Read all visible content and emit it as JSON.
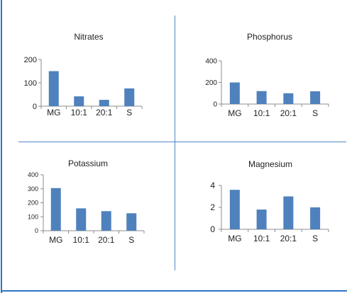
{
  "colors": {
    "bar": "#4f81bd",
    "axis": "#8c8c8c",
    "frame": "#2e74c4"
  },
  "chart_data": [
    {
      "type": "bar",
      "title": "Nitrates",
      "categories": [
        "MG",
        "10:1",
        "20:1",
        "S"
      ],
      "values": [
        150,
        42,
        27,
        76
      ],
      "ylim": [
        0,
        200
      ],
      "yticks": [
        "0",
        "100",
        "200"
      ],
      "grid": false,
      "legend": "none"
    },
    {
      "type": "bar",
      "title": "Phosphorus",
      "categories": [
        "MG",
        "10:1",
        "20:1",
        "S"
      ],
      "values": [
        200,
        120,
        100,
        118
      ],
      "ylim": [
        0,
        400
      ],
      "yticks": [
        "0",
        "200",
        "400"
      ],
      "grid": false,
      "legend": "none"
    },
    {
      "type": "bar",
      "title": "Potassium",
      "categories": [
        "MG",
        "10:1",
        "20:1",
        "S"
      ],
      "values": [
        305,
        160,
        140,
        125
      ],
      "ylim": [
        0,
        400
      ],
      "yticks": [
        "0",
        "100",
        "200",
        "300",
        "400"
      ],
      "grid": false,
      "legend": "none"
    },
    {
      "type": "bar",
      "title": "Magnesium",
      "categories": [
        "MG",
        "10:1",
        "20:1",
        "S"
      ],
      "values": [
        3.6,
        1.8,
        3.0,
        2.0
      ],
      "ylim": [
        0,
        4
      ],
      "yticks": [
        "0",
        "2",
        "4"
      ],
      "grid": false,
      "legend": "none"
    }
  ]
}
